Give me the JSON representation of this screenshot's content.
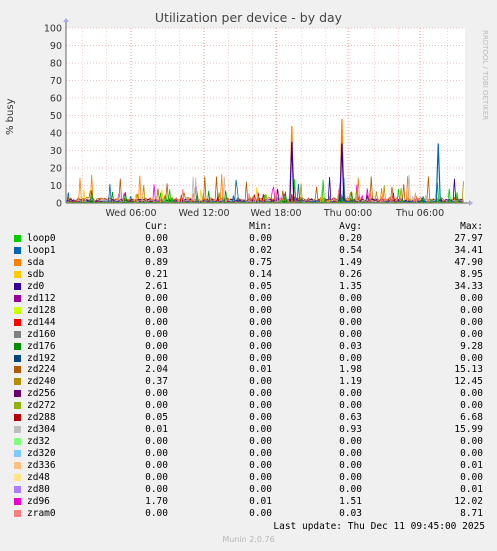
{
  "chart_data": {
    "type": "line",
    "title": "Utilization per device - by day",
    "ylabel": "% busy",
    "ylim": [
      0,
      100
    ],
    "yticks": [
      0,
      10,
      20,
      30,
      40,
      50,
      60,
      70,
      80,
      90,
      100
    ],
    "xticks": [
      "Wed 06:00",
      "Wed 12:00",
      "Wed 18:00",
      "Thu 00:00",
      "Thu 06:00"
    ],
    "grid": true,
    "spikes": [
      {
        "series": "sda",
        "x": "Wed 18:00 +1.3h",
        "value": 44
      },
      {
        "series": "sda",
        "x": "Thu 00:00 -0.5h",
        "value": 48
      },
      {
        "series": "zd0",
        "x": "Wed 18:00 +1.3h",
        "value": 35
      },
      {
        "series": "zd0",
        "x": "Thu 00:00 -0.5h",
        "value": 34
      },
      {
        "series": "loop1",
        "x": "Thu 06:00 +1.5h",
        "value": 34
      }
    ],
    "legend_header": {
      "cur": "Cur:",
      "min": "Min:",
      "avg": "Avg:",
      "max": "Max:"
    },
    "series": [
      {
        "name": "loop0",
        "color": "#00cc00",
        "cur": "0.00",
        "min": "0.00",
        "avg": "0.20",
        "max": "27.97"
      },
      {
        "name": "loop1",
        "color": "#0066b3",
        "cur": "0.03",
        "min": "0.02",
        "avg": "0.54",
        "max": "34.41"
      },
      {
        "name": "sda",
        "color": "#ff8000",
        "cur": "0.89",
        "min": "0.75",
        "avg": "1.49",
        "max": "47.90"
      },
      {
        "name": "sdb",
        "color": "#ffcc00",
        "cur": "0.21",
        "min": "0.14",
        "avg": "0.26",
        "max": "8.95"
      },
      {
        "name": "zd0",
        "color": "#330099",
        "cur": "2.61",
        "min": "0.05",
        "avg": "1.35",
        "max": "34.33"
      },
      {
        "name": "zd112",
        "color": "#990099",
        "cur": "0.00",
        "min": "0.00",
        "avg": "0.00",
        "max": "0.00"
      },
      {
        "name": "zd128",
        "color": "#ccff00",
        "cur": "0.00",
        "min": "0.00",
        "avg": "0.00",
        "max": "0.00"
      },
      {
        "name": "zd144",
        "color": "#ff0000",
        "cur": "0.00",
        "min": "0.00",
        "avg": "0.00",
        "max": "0.00"
      },
      {
        "name": "zd160",
        "color": "#808080",
        "cur": "0.00",
        "min": "0.00",
        "avg": "0.00",
        "max": "0.00"
      },
      {
        "name": "zd176",
        "color": "#008f00",
        "cur": "0.00",
        "min": "0.00",
        "avg": "0.03",
        "max": "9.28"
      },
      {
        "name": "zd192",
        "color": "#00487d",
        "cur": "0.00",
        "min": "0.00",
        "avg": "0.00",
        "max": "0.00"
      },
      {
        "name": "zd224",
        "color": "#b35a00",
        "cur": "2.04",
        "min": "0.01",
        "avg": "1.98",
        "max": "15.13"
      },
      {
        "name": "zd240",
        "color": "#b38f00",
        "cur": "0.37",
        "min": "0.00",
        "avg": "1.19",
        "max": "12.45"
      },
      {
        "name": "zd256",
        "color": "#6b006b",
        "cur": "0.00",
        "min": "0.00",
        "avg": "0.00",
        "max": "0.00"
      },
      {
        "name": "zd272",
        "color": "#8fb300",
        "cur": "0.00",
        "min": "0.00",
        "avg": "0.00",
        "max": "0.00"
      },
      {
        "name": "zd288",
        "color": "#b30000",
        "cur": "0.05",
        "min": "0.00",
        "avg": "0.63",
        "max": "6.68"
      },
      {
        "name": "zd304",
        "color": "#bebebe",
        "cur": "0.01",
        "min": "0.00",
        "avg": "0.93",
        "max": "15.99"
      },
      {
        "name": "zd32",
        "color": "#80ff80",
        "cur": "0.00",
        "min": "0.00",
        "avg": "0.00",
        "max": "0.00"
      },
      {
        "name": "zd320",
        "color": "#80c9ff",
        "cur": "0.00",
        "min": "0.00",
        "avg": "0.00",
        "max": "0.00"
      },
      {
        "name": "zd336",
        "color": "#ffc080",
        "cur": "0.00",
        "min": "0.00",
        "avg": "0.00",
        "max": "0.01"
      },
      {
        "name": "zd48",
        "color": "#ffe680",
        "cur": "0.00",
        "min": "0.00",
        "avg": "0.00",
        "max": "0.00"
      },
      {
        "name": "zd80",
        "color": "#aa80ff",
        "cur": "0.00",
        "min": "0.00",
        "avg": "0.00",
        "max": "0.01"
      },
      {
        "name": "zd96",
        "color": "#ee00cc",
        "cur": "1.70",
        "min": "0.01",
        "avg": "1.51",
        "max": "12.02"
      },
      {
        "name": "zram0",
        "color": "#ff8080",
        "cur": "0.00",
        "min": "0.00",
        "avg": "0.03",
        "max": "8.71"
      }
    ]
  },
  "last_update": "Last update: Thu Dec 11 09:45:00 2025",
  "footer": "Munin 2.0.76",
  "watermark": "RRDTOOL / TOBI OETIKER"
}
